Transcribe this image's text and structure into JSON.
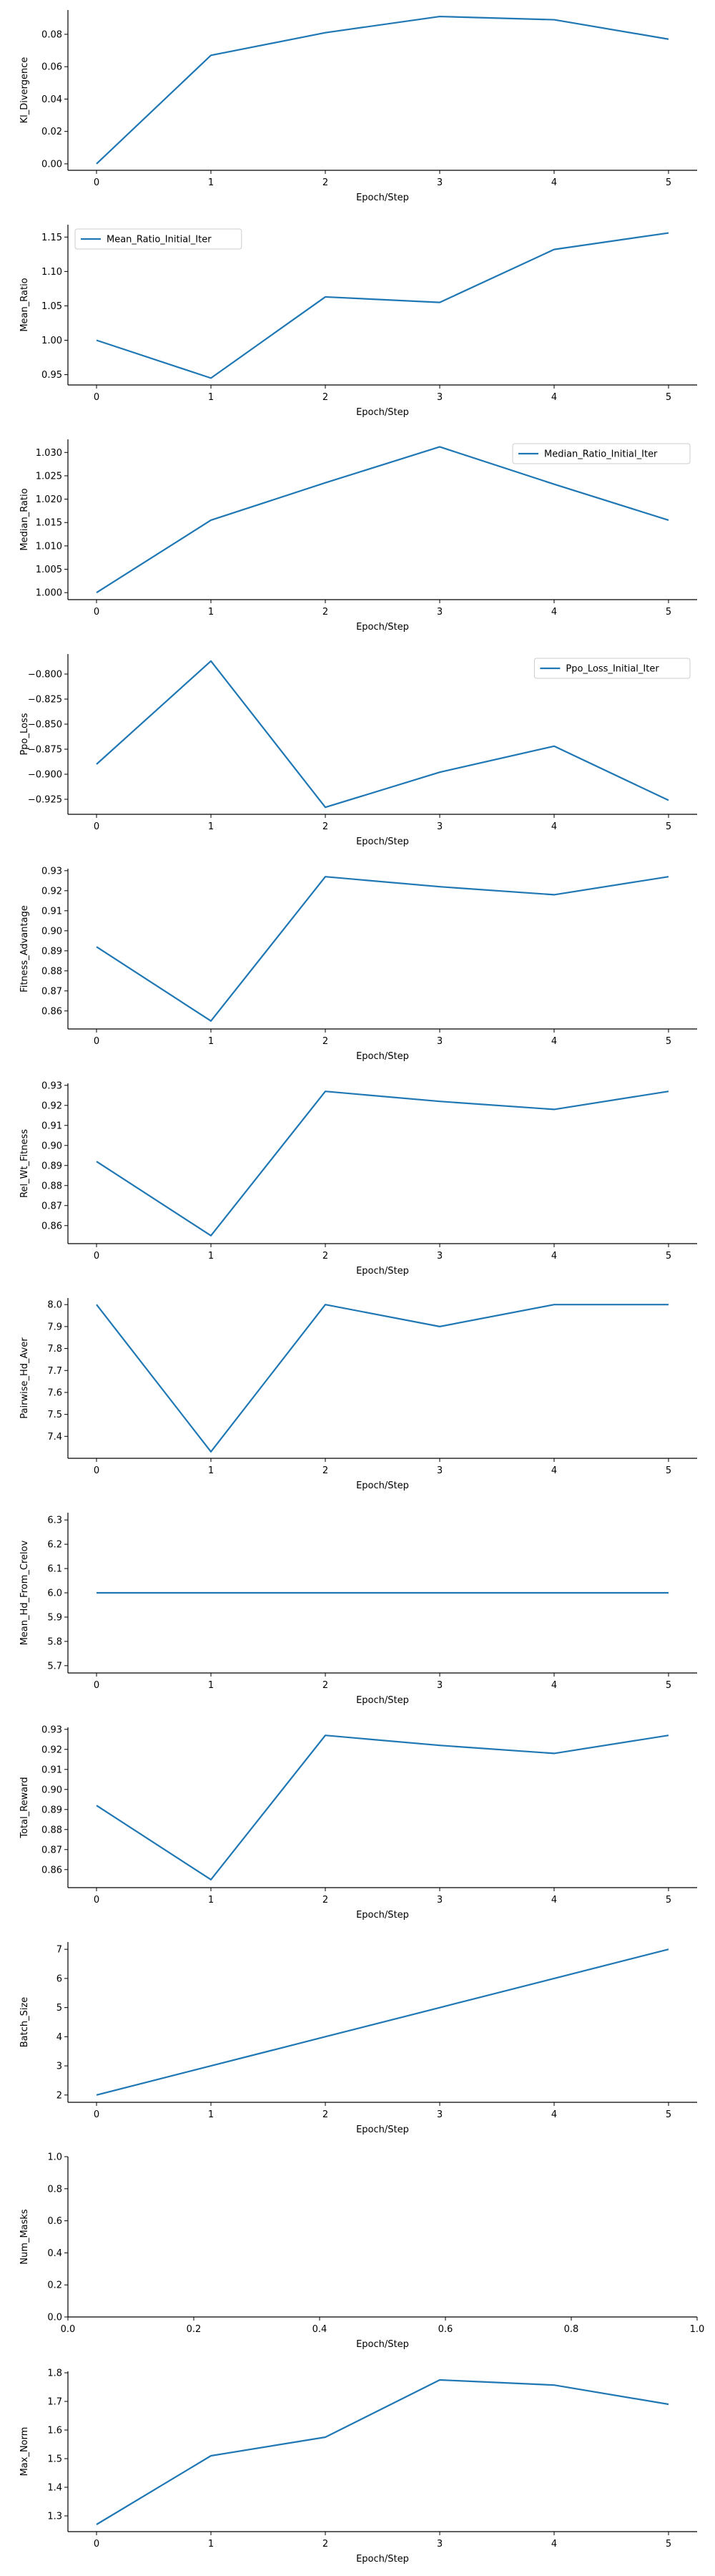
{
  "colors": {
    "series": "#1f77b4",
    "axis": "#000000"
  },
  "chart_data": [
    {
      "type": "line",
      "xlabel": "Epoch/Step",
      "ylabel": "Kl_Divergence",
      "x": [
        0,
        1,
        2,
        3,
        4,
        5
      ],
      "series": [
        {
          "values": [
            0.0,
            0.067,
            0.081,
            0.091,
            0.089,
            0.077
          ]
        }
      ],
      "xlim": [
        -0.25,
        5.25
      ],
      "ylim": [
        -0.004,
        0.095
      ],
      "xticks": [
        0,
        1,
        2,
        3,
        4,
        5
      ],
      "xtick_labels": [
        "0",
        "1",
        "2",
        "3",
        "4",
        "5"
      ],
      "yticks": [
        0.0,
        0.02,
        0.04,
        0.06,
        0.08
      ],
      "ytick_labels": [
        "0.00",
        "0.02",
        "0.04",
        "0.06",
        "0.08"
      ]
    },
    {
      "type": "line",
      "xlabel": "Epoch/Step",
      "ylabel": "Mean_Ratio",
      "x": [
        0,
        1,
        2,
        3,
        4,
        5
      ],
      "series": [
        {
          "name": "Mean_Ratio_Initial_Iter",
          "values": [
            1.0,
            0.945,
            1.063,
            1.055,
            1.132,
            1.156
          ]
        }
      ],
      "legend": "top-left",
      "xlim": [
        -0.25,
        5.25
      ],
      "ylim": [
        0.935,
        1.168
      ],
      "xticks": [
        0,
        1,
        2,
        3,
        4,
        5
      ],
      "xtick_labels": [
        "0",
        "1",
        "2",
        "3",
        "4",
        "5"
      ],
      "yticks": [
        0.95,
        1.0,
        1.05,
        1.1,
        1.15
      ],
      "ytick_labels": [
        "0.95",
        "1.00",
        "1.05",
        "1.10",
        "1.15"
      ]
    },
    {
      "type": "line",
      "xlabel": "Epoch/Step",
      "ylabel": "Median_Ratio",
      "x": [
        0,
        1,
        2,
        3,
        4,
        5
      ],
      "series": [
        {
          "name": "Median_Ratio_Initial_Iter",
          "values": [
            1.0,
            1.0155,
            1.0235,
            1.0312,
            1.0232,
            1.0155
          ]
        }
      ],
      "legend": "top-right",
      "xlim": [
        -0.25,
        5.25
      ],
      "ylim": [
        0.9985,
        1.0328
      ],
      "xticks": [
        0,
        1,
        2,
        3,
        4,
        5
      ],
      "xtick_labels": [
        "0",
        "1",
        "2",
        "3",
        "4",
        "5"
      ],
      "yticks": [
        1.0,
        1.005,
        1.01,
        1.015,
        1.02,
        1.025,
        1.03
      ],
      "ytick_labels": [
        "1.000",
        "1.005",
        "1.010",
        "1.015",
        "1.020",
        "1.025",
        "1.030"
      ]
    },
    {
      "type": "line",
      "xlabel": "Epoch/Step",
      "ylabel": "Ppo_Loss",
      "x": [
        0,
        1,
        2,
        3,
        4,
        5
      ],
      "series": [
        {
          "name": "Ppo_Loss_Initial_Iter",
          "values": [
            -0.89,
            -0.787,
            -0.933,
            -0.898,
            -0.872,
            -0.926
          ]
        }
      ],
      "legend": "top-right",
      "xlim": [
        -0.25,
        5.25
      ],
      "ylim": [
        -0.94,
        -0.78
      ],
      "xticks": [
        0,
        1,
        2,
        3,
        4,
        5
      ],
      "xtick_labels": [
        "0",
        "1",
        "2",
        "3",
        "4",
        "5"
      ],
      "yticks": [
        -0.925,
        -0.9,
        -0.875,
        -0.85,
        -0.825,
        -0.8
      ],
      "ytick_labels": [
        "−0.925",
        "−0.900",
        "−0.875",
        "−0.850",
        "−0.825",
        "−0.800"
      ]
    },
    {
      "type": "line",
      "xlabel": "Epoch/Step",
      "ylabel": "Fitness_Advantage",
      "x": [
        0,
        1,
        2,
        3,
        4,
        5
      ],
      "series": [
        {
          "values": [
            0.892,
            0.855,
            0.927,
            0.922,
            0.918,
            0.927
          ]
        }
      ],
      "xlim": [
        -0.25,
        5.25
      ],
      "ylim": [
        0.851,
        0.931
      ],
      "xticks": [
        0,
        1,
        2,
        3,
        4,
        5
      ],
      "xtick_labels": [
        "0",
        "1",
        "2",
        "3",
        "4",
        "5"
      ],
      "yticks": [
        0.86,
        0.87,
        0.88,
        0.89,
        0.9,
        0.91,
        0.92,
        0.93
      ],
      "ytick_labels": [
        "0.86",
        "0.87",
        "0.88",
        "0.89",
        "0.90",
        "0.91",
        "0.92",
        "0.93"
      ]
    },
    {
      "type": "line",
      "xlabel": "Epoch/Step",
      "ylabel": "Rel_Wt_Fitness",
      "x": [
        0,
        1,
        2,
        3,
        4,
        5
      ],
      "series": [
        {
          "values": [
            0.892,
            0.855,
            0.927,
            0.922,
            0.918,
            0.927
          ]
        }
      ],
      "xlim": [
        -0.25,
        5.25
      ],
      "ylim": [
        0.851,
        0.931
      ],
      "xticks": [
        0,
        1,
        2,
        3,
        4,
        5
      ],
      "xtick_labels": [
        "0",
        "1",
        "2",
        "3",
        "4",
        "5"
      ],
      "yticks": [
        0.86,
        0.87,
        0.88,
        0.89,
        0.9,
        0.91,
        0.92,
        0.93
      ],
      "ytick_labels": [
        "0.86",
        "0.87",
        "0.88",
        "0.89",
        "0.90",
        "0.91",
        "0.92",
        "0.93"
      ]
    },
    {
      "type": "line",
      "xlabel": "Epoch/Step",
      "ylabel": "Pairwise_Hd_Aver",
      "x": [
        0,
        1,
        2,
        3,
        4,
        5
      ],
      "series": [
        {
          "values": [
            8.0,
            7.33,
            8.0,
            7.9,
            8.0,
            8.0
          ]
        }
      ],
      "xlim": [
        -0.25,
        5.25
      ],
      "ylim": [
        7.3,
        8.03
      ],
      "xticks": [
        0,
        1,
        2,
        3,
        4,
        5
      ],
      "xtick_labels": [
        "0",
        "1",
        "2",
        "3",
        "4",
        "5"
      ],
      "yticks": [
        7.4,
        7.5,
        7.6,
        7.7,
        7.8,
        7.9,
        8.0
      ],
      "ytick_labels": [
        "7.4",
        "7.5",
        "7.6",
        "7.7",
        "7.8",
        "7.9",
        "8.0"
      ]
    },
    {
      "type": "line",
      "xlabel": "Epoch/Step",
      "ylabel": "Mean_Hd_From_Crelov",
      "x": [
        0,
        1,
        2,
        3,
        4,
        5
      ],
      "series": [
        {
          "values": [
            6.0,
            6.0,
            6.0,
            6.0,
            6.0,
            6.0
          ]
        }
      ],
      "xlim": [
        -0.25,
        5.25
      ],
      "ylim": [
        5.67,
        6.33
      ],
      "xticks": [
        0,
        1,
        2,
        3,
        4,
        5
      ],
      "xtick_labels": [
        "0",
        "1",
        "2",
        "3",
        "4",
        "5"
      ],
      "yticks": [
        5.7,
        5.8,
        5.9,
        6.0,
        6.1,
        6.2,
        6.3
      ],
      "ytick_labels": [
        "5.7",
        "5.8",
        "5.9",
        "6.0",
        "6.1",
        "6.2",
        "6.3"
      ]
    },
    {
      "type": "line",
      "xlabel": "Epoch/Step",
      "ylabel": "Total_Reward",
      "x": [
        0,
        1,
        2,
        3,
        4,
        5
      ],
      "series": [
        {
          "values": [
            0.892,
            0.855,
            0.927,
            0.922,
            0.918,
            0.927
          ]
        }
      ],
      "xlim": [
        -0.25,
        5.25
      ],
      "ylim": [
        0.851,
        0.931
      ],
      "xticks": [
        0,
        1,
        2,
        3,
        4,
        5
      ],
      "xtick_labels": [
        "0",
        "1",
        "2",
        "3",
        "4",
        "5"
      ],
      "yticks": [
        0.86,
        0.87,
        0.88,
        0.89,
        0.9,
        0.91,
        0.92,
        0.93
      ],
      "ytick_labels": [
        "0.86",
        "0.87",
        "0.88",
        "0.89",
        "0.90",
        "0.91",
        "0.92",
        "0.93"
      ]
    },
    {
      "type": "line",
      "xlabel": "Epoch/Step",
      "ylabel": "Batch_Size",
      "x": [
        0,
        1,
        2,
        3,
        4,
        5
      ],
      "series": [
        {
          "values": [
            2,
            3,
            4,
            5,
            6,
            7
          ]
        }
      ],
      "xlim": [
        -0.25,
        5.25
      ],
      "ylim": [
        1.75,
        7.25
      ],
      "xticks": [
        0,
        1,
        2,
        3,
        4,
        5
      ],
      "xtick_labels": [
        "0",
        "1",
        "2",
        "3",
        "4",
        "5"
      ],
      "yticks": [
        2,
        3,
        4,
        5,
        6,
        7
      ],
      "ytick_labels": [
        "2",
        "3",
        "4",
        "5",
        "6",
        "7"
      ]
    },
    {
      "type": "line",
      "xlabel": "Epoch/Step",
      "ylabel": "Num_Masks",
      "x": [],
      "series": [],
      "xlim": [
        0,
        1
      ],
      "ylim": [
        0,
        1
      ],
      "xticks": [
        0,
        0.2,
        0.4,
        0.6,
        0.8,
        1.0
      ],
      "xtick_labels": [
        "0.0",
        "0.2",
        "0.4",
        "0.6",
        "0.8",
        "1.0"
      ],
      "yticks": [
        0,
        0.2,
        0.4,
        0.6,
        0.8,
        1.0
      ],
      "ytick_labels": [
        "0.0",
        "0.2",
        "0.4",
        "0.6",
        "0.8",
        "1.0"
      ]
    },
    {
      "type": "line",
      "xlabel": "Epoch/Step",
      "ylabel": "Max_Norm",
      "x": [
        0,
        1,
        2,
        3,
        4,
        5
      ],
      "series": [
        {
          "values": [
            1.27,
            1.51,
            1.575,
            1.775,
            1.757,
            1.69
          ]
        }
      ],
      "xlim": [
        -0.25,
        5.25
      ],
      "ylim": [
        1.245,
        1.805
      ],
      "xticks": [
        0,
        1,
        2,
        3,
        4,
        5
      ],
      "xtick_labels": [
        "0",
        "1",
        "2",
        "3",
        "4",
        "5"
      ],
      "yticks": [
        1.3,
        1.4,
        1.5,
        1.6,
        1.7,
        1.8
      ],
      "ytick_labels": [
        "1.3",
        "1.4",
        "1.5",
        "1.6",
        "1.7",
        "1.8"
      ]
    }
  ]
}
